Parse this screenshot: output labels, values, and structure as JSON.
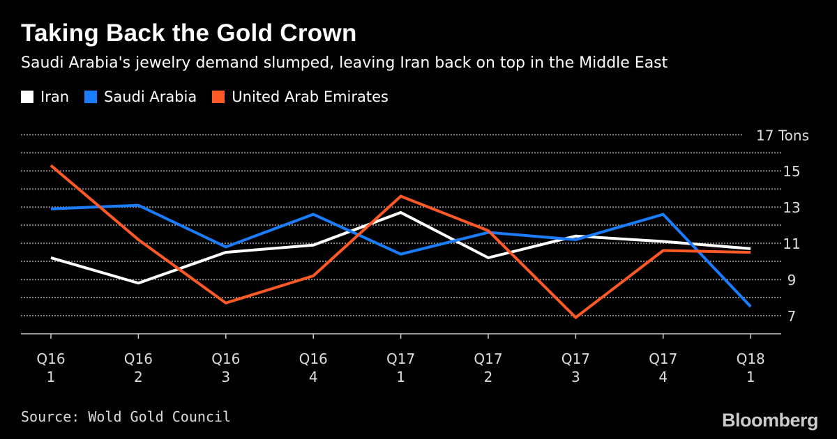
{
  "chart_data": {
    "type": "line",
    "title": "Taking Back the Gold Crown",
    "subtitle": "Saudi Arabia's jewelry demand slumped, leaving Iran back on top in the Middle East",
    "categories": [
      [
        "Q16",
        "1"
      ],
      [
        "Q16",
        "2"
      ],
      [
        "Q16",
        "3"
      ],
      [
        "Q16",
        "4"
      ],
      [
        "Q17",
        "1"
      ],
      [
        "Q17",
        "2"
      ],
      [
        "Q17",
        "3"
      ],
      [
        "Q17",
        "4"
      ],
      [
        "Q18",
        "1"
      ]
    ],
    "ylabel_unit": "Tons",
    "ylim": [
      6,
      17
    ],
    "yticks": [
      7,
      9,
      11,
      13,
      15,
      17
    ],
    "ytick_labels": [
      "7",
      "9",
      "11",
      "13",
      "15",
      "17 Tons"
    ],
    "grid": true,
    "legend_position": "top-left",
    "series": [
      {
        "name": "Iran",
        "color": "#ffffff",
        "values": [
          10.2,
          8.8,
          10.5,
          10.9,
          12.7,
          10.2,
          11.4,
          11.1,
          10.7
        ]
      },
      {
        "name": "Saudi Arabia",
        "color": "#1a7cff",
        "values": [
          12.9,
          13.1,
          10.8,
          12.6,
          10.4,
          11.6,
          11.2,
          12.6,
          7.5
        ]
      },
      {
        "name": "United Arab Emirates",
        "color": "#ff5a26",
        "values": [
          15.3,
          11.2,
          7.7,
          9.2,
          13.6,
          11.7,
          6.9,
          10.6,
          10.5
        ]
      }
    ]
  },
  "source": "Source: Wold Gold Council",
  "logo": "Bloomberg"
}
